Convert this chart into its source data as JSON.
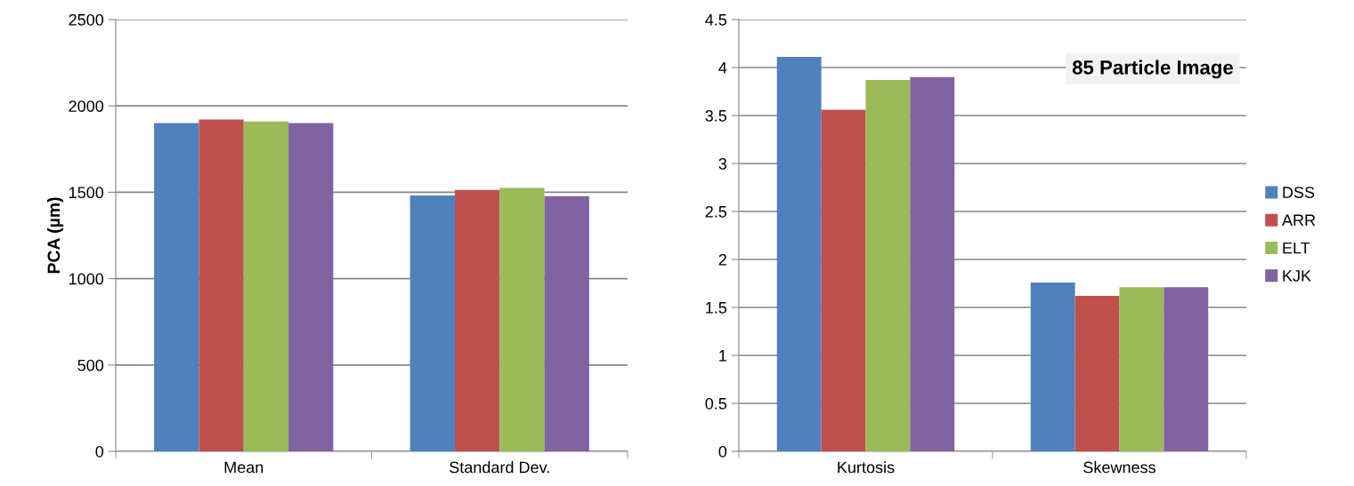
{
  "chart_data": [
    {
      "type": "bar",
      "ylabel": "PCA (µm)",
      "categories": [
        "Mean",
        "Standard Dev."
      ],
      "ylim": [
        0,
        2500
      ],
      "yticks": [
        0,
        500,
        1000,
        1500,
        2000,
        2500
      ],
      "grid": "y",
      "series": [
        {
          "color": "#4f81bd",
          "values": [
            1901,
            1482
          ]
        },
        {
          "color": "#c0504d",
          "values": [
            1921,
            1513
          ]
        },
        {
          "color": "#9bbb59",
          "values": [
            1910,
            1525
          ]
        },
        {
          "color": "#8064a2",
          "values": [
            1901,
            1477
          ]
        }
      ]
    },
    {
      "type": "bar",
      "categories": [
        "Kurtosis",
        "Skewness"
      ],
      "ylim": [
        0,
        4.5
      ],
      "yticks": [
        0,
        0.5,
        1,
        1.5,
        2,
        2.5,
        3,
        3.5,
        4,
        4.5
      ],
      "grid": "y",
      "legend": "right",
      "annotations": [
        "85 Particle Image"
      ],
      "series": [
        {
          "name": "DSS",
          "color": "#4f81bd",
          "values": [
            4.11,
            1.76
          ]
        },
        {
          "name": "ARR",
          "color": "#c0504d",
          "values": [
            3.56,
            1.62
          ]
        },
        {
          "name": "ELT",
          "color": "#9bbb59",
          "values": [
            3.87,
            1.71
          ]
        },
        {
          "name": "KJK",
          "color": "#8064a2",
          "values": [
            3.9,
            1.71
          ]
        }
      ]
    }
  ]
}
